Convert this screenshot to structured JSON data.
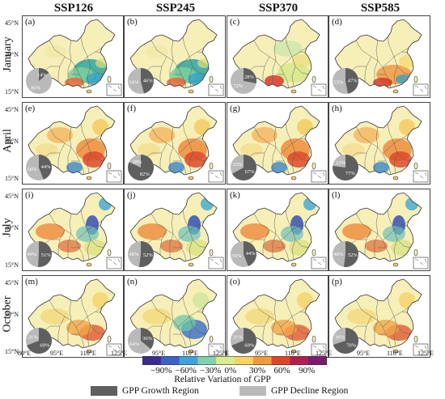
{
  "columns": [
    "SSP126",
    "SSP245",
    "SSP370",
    "SSP585"
  ],
  "rows": [
    "January",
    "April",
    "July",
    "October"
  ],
  "panels": [
    {
      "label": "(a)",
      "growth": "14%",
      "decline": "86%",
      "growth_frac": 0.14,
      "style": 0
    },
    {
      "label": "(b)",
      "growth": "46%",
      "decline": "54%",
      "growth_frac": 0.46,
      "style": 0
    },
    {
      "label": "(c)",
      "growth": "28%",
      "decline": "72%",
      "growth_frac": 0.28,
      "style": 1
    },
    {
      "label": "(d)",
      "growth": "47%",
      "decline": "53%",
      "growth_frac": 0.47,
      "style": 2
    },
    {
      "label": "(e)",
      "growth": "44%",
      "decline": "56%",
      "growth_frac": 0.44,
      "style": 3
    },
    {
      "label": "(f)",
      "growth": "82%",
      "decline": "18%",
      "growth_frac": 0.82,
      "style": 3
    },
    {
      "label": "(g)",
      "growth": "67%",
      "decline": "33%",
      "growth_frac": 0.67,
      "style": 3
    },
    {
      "label": "(h)",
      "growth": "77%",
      "decline": "23%",
      "growth_frac": 0.77,
      "style": 3
    },
    {
      "label": "(i)",
      "growth": "51%",
      "decline": "49%",
      "growth_frac": 0.51,
      "style": 4
    },
    {
      "label": "(j)",
      "growth": "52%",
      "decline": "48%",
      "growth_frac": 0.52,
      "style": 4
    },
    {
      "label": "(k)",
      "growth": "44%",
      "decline": "56%",
      "growth_frac": 0.44,
      "style": 4
    },
    {
      "label": "(l)",
      "growth": "52%",
      "decline": "48%",
      "growth_frac": 0.52,
      "style": 4
    },
    {
      "label": "(m)",
      "growth": "69%",
      "decline": "31%",
      "growth_frac": 0.69,
      "style": 5
    },
    {
      "label": "(n)",
      "growth": "36%",
      "decline": "64%",
      "growth_frac": 0.36,
      "style": 6
    },
    {
      "label": "(o)",
      "growth": "69%",
      "decline": "31%",
      "growth_frac": 0.69,
      "style": 5
    },
    {
      "label": "(p)",
      "growth": "70%",
      "decline": "30%",
      "growth_frac": 0.7,
      "style": 5
    }
  ],
  "lat_labels": [
    "45°N",
    "30°N",
    "15°N"
  ],
  "lon_labels": [
    "80°E",
    "95°E",
    "110°E",
    "125°E"
  ],
  "colorbar": {
    "ticks": [
      "−90%",
      "−60%",
      "−30%",
      "0%",
      "30%",
      "60%",
      "90%"
    ],
    "title": "Relative Variation of GPP",
    "colors": [
      "#3b2a8f",
      "#3a62c8",
      "#3fa3d8",
      "#7fd1b0",
      "#d8ec8c",
      "#f7d364",
      "#f29a3a",
      "#e0442b",
      "#b21f4e",
      "#7d1a6e"
    ]
  },
  "legend": {
    "growth_label": "GPP Growth Region",
    "decline_label": "GPP Decline Region",
    "growth_color": "#5f5f5f",
    "decline_color": "#b9b9b9"
  }
}
